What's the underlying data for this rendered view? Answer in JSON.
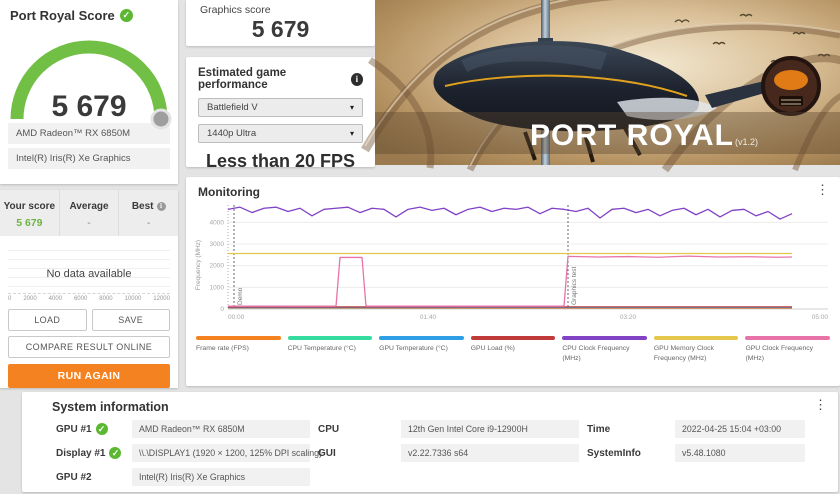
{
  "icons": {
    "check": "✓",
    "info": "i",
    "kebab": "⋮",
    "caret": "▾"
  },
  "colors": {
    "accent_green": "#5cb832",
    "gauge_green": "#71bf44",
    "accent_orange": "#f58220",
    "score_green": "#6db33f"
  },
  "score_card": {
    "title": "Port Royal Score",
    "score": "5 679",
    "gpu1": "AMD Radeon™ RX 6850M",
    "gpu2": "Intel(R) Iris(R) Xe Graphics"
  },
  "comparison": {
    "your_label": "Your score",
    "your_value": "5 679",
    "avg_label": "Average",
    "avg_value": "-",
    "best_label": "Best",
    "best_value": "-",
    "empty_text": "No data available",
    "axis": [
      "0",
      "2000",
      "4000",
      "6000",
      "8000",
      "10000",
      "12000"
    ]
  },
  "actions": {
    "load": "LOAD",
    "save": "SAVE",
    "compare": "COMPARE RESULT ONLINE",
    "run_again": "RUN AGAIN"
  },
  "graphics_score": {
    "label": "Graphics score",
    "value": "5 679"
  },
  "game_performance": {
    "title": "Estimated game performance",
    "game": "Battlefield V",
    "preset": "1440p Ultra",
    "fps": "Less than 20 FPS"
  },
  "hero": {
    "title": "PORT ROYAL",
    "version": "(v1.2)"
  },
  "monitoring": {
    "title": "Monitoring",
    "chart_data": {
      "type": "line",
      "title": "Monitoring",
      "ylabel": "Frequency (MHz)",
      "ylim": [
        0,
        4800
      ],
      "yticks": [
        0,
        1000,
        2000,
        3000,
        4000
      ],
      "xlim_seconds": [
        0,
        300
      ],
      "xticks": [
        "00:00",
        "01:40",
        "03:20",
        "05:00"
      ],
      "grid": true,
      "legend_position": "bottom",
      "markers": [
        {
          "t": 3,
          "label": "Demo"
        },
        {
          "t": 170,
          "label": "Graphics test"
        }
      ],
      "series": [
        {
          "name": "Frame rate (FPS)",
          "color": "#f5821f",
          "points": [
            [
              0,
              45
            ],
            [
              282,
              40
            ]
          ]
        },
        {
          "name": "CPU Temperature (°C)",
          "color": "#35dca0",
          "points": [
            [
              0,
              75
            ],
            [
              282,
              85
            ]
          ]
        },
        {
          "name": "GPU Temperature (°C)",
          "color": "#2e9fe6",
          "points": [
            [
              0,
              65
            ],
            [
              282,
              72
            ]
          ]
        },
        {
          "name": "GPU Load (%)",
          "color": "#c03a3a",
          "points": [
            [
              0,
              95
            ],
            [
              282,
              98
            ]
          ]
        },
        {
          "name": "GPU Memory Clock Frequency (MHz)",
          "color": "#e5c84b",
          "points": [
            [
              0,
              2560
            ],
            [
              282,
              2560
            ]
          ]
        },
        {
          "name": "GPU Clock Frequency (MHz)",
          "color": "#e873a8",
          "points": [
            [
              0,
              130
            ],
            [
              54,
              130
            ],
            [
              56,
              2380
            ],
            [
              67,
              2380
            ],
            [
              69,
              130
            ],
            [
              168,
              130
            ],
            [
              170,
              2430
            ],
            [
              185,
              2400
            ],
            [
              200,
              2420
            ],
            [
              215,
              2390
            ],
            [
              230,
              2440
            ],
            [
              245,
              2400
            ],
            [
              260,
              2410
            ],
            [
              275,
              2390
            ],
            [
              282,
              2400
            ]
          ]
        },
        {
          "name": "CPU Clock Frequency (MHz)",
          "color": "#8142c6",
          "t0": 0,
          "dt": 6,
          "values": [
            4600,
            4700,
            4450,
            4650,
            4700,
            4500,
            4650,
            4300,
            4600,
            4650,
            4700,
            4450,
            4650,
            4600,
            4250,
            4600,
            4700,
            4550,
            4650,
            4350,
            4600,
            4700,
            4500,
            4650,
            4600,
            4700,
            4400,
            4650,
            4600,
            4500,
            4650,
            4200,
            4600,
            4650,
            4450,
            4600,
            4300,
            4550,
            4650,
            4350,
            4600,
            4250,
            4550,
            4600,
            4300,
            4500,
            4150,
            4400
          ]
        }
      ],
      "legend_order": [
        "Frame rate (FPS)",
        "CPU Temperature (°C)",
        "GPU Temperature (°C)",
        "GPU Load (%)",
        "CPU Clock Frequency (MHz)",
        "GPU Memory Clock Frequency (MHz)",
        "GPU Clock Frequency (MHz)"
      ]
    }
  },
  "system_info": {
    "title": "System information",
    "rows": [
      {
        "cells": [
          {
            "label": "GPU #1",
            "check": true,
            "value": "AMD Radeon™ RX 6850M"
          },
          {
            "label": "CPU",
            "check": false,
            "value": "12th Gen Intel Core i9-12900H"
          },
          {
            "label": "Time",
            "check": false,
            "value": "2022-04-25 15:04 +03:00"
          }
        ]
      },
      {
        "cells": [
          {
            "label": "Display #1",
            "check": true,
            "value": "\\\\.\\DISPLAY1 (1920 × 1200, 125% DPI scaling)"
          },
          {
            "label": "GUI",
            "check": false,
            "value": "v2.22.7336 s64"
          },
          {
            "label": "SystemInfo",
            "check": false,
            "value": "v5.48.1080"
          }
        ]
      },
      {
        "cells": [
          {
            "label": "GPU #2",
            "check": false,
            "value": "Intel(R) Iris(R) Xe Graphics"
          },
          null,
          null
        ]
      }
    ]
  }
}
